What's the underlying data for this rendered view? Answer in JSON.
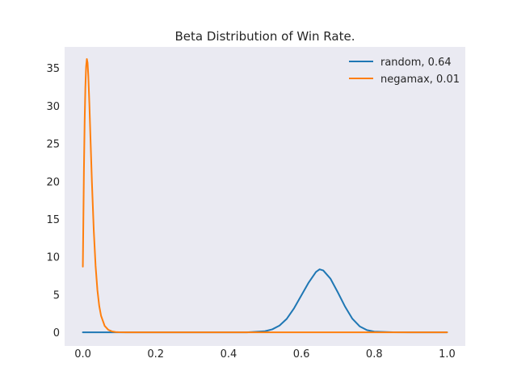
{
  "chart_data": {
    "type": "line",
    "title": "Beta Distribution of Win Rate.",
    "xlabel": "",
    "ylabel": "",
    "xlim": [
      -0.05,
      1.05
    ],
    "ylim": [
      -1.8,
      37.8
    ],
    "xticks": [
      0.0,
      0.2,
      0.4,
      0.6,
      0.8,
      1.0
    ],
    "xtick_labels": [
      "0.0",
      "0.2",
      "0.4",
      "0.6",
      "0.8",
      "1.0"
    ],
    "yticks": [
      0,
      5,
      10,
      15,
      20,
      25,
      30,
      35
    ],
    "ytick_labels": [
      "0",
      "5",
      "10",
      "15",
      "20",
      "25",
      "30",
      "35"
    ],
    "grid": false,
    "legend_position": "top-right",
    "background": "#eaeaf2",
    "series": [
      {
        "name": "random, 0.64",
        "color": "#1f77b4",
        "x": [
          0.0,
          0.1,
          0.2,
          0.3,
          0.4,
          0.45,
          0.5,
          0.52,
          0.54,
          0.56,
          0.58,
          0.6,
          0.62,
          0.64,
          0.65,
          0.66,
          0.68,
          0.7,
          0.72,
          0.74,
          0.76,
          0.78,
          0.8,
          0.85,
          0.9,
          1.0
        ],
        "y": [
          0.0,
          0.0,
          0.0,
          0.0,
          0.0,
          0.0,
          0.15,
          0.4,
          0.9,
          1.8,
          3.2,
          4.9,
          6.6,
          8.0,
          8.35,
          8.2,
          7.1,
          5.3,
          3.4,
          1.8,
          0.8,
          0.3,
          0.1,
          0.02,
          0.0,
          0.0
        ]
      },
      {
        "name": "negamax, 0.01",
        "color": "#ff7f0e",
        "x": [
          0.0,
          0.0015,
          0.003,
          0.005,
          0.007,
          0.009,
          0.011,
          0.013,
          0.015,
          0.018,
          0.021,
          0.025,
          0.03,
          0.035,
          0.04,
          0.045,
          0.05,
          0.06,
          0.07,
          0.08,
          0.09,
          0.1,
          0.12,
          0.15,
          0.2,
          0.3,
          0.5,
          0.7,
          1.0
        ],
        "y": [
          8.7,
          15.0,
          21.5,
          28.0,
          32.5,
          35.2,
          36.2,
          35.7,
          34.0,
          30.2,
          25.7,
          19.8,
          13.5,
          8.8,
          5.6,
          3.5,
          2.2,
          0.85,
          0.33,
          0.13,
          0.05,
          0.02,
          0.0,
          0.0,
          0.0,
          0.0,
          0.0,
          0.0,
          0.0
        ]
      }
    ]
  }
}
